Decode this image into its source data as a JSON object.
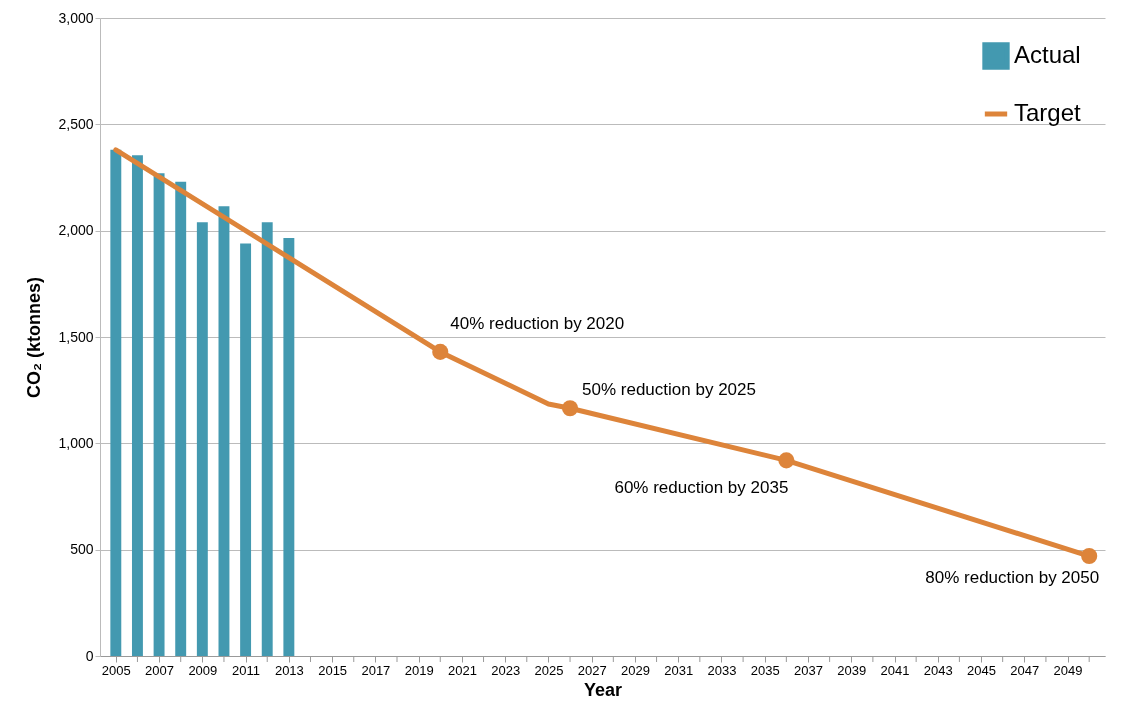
{
  "chart_data": {
    "type": "bar",
    "xlabel": "Year",
    "ylabel": "CO₂ (ktonnes)",
    "xlim": [
      2004.5,
      2050.5
    ],
    "xticks": [
      2005,
      {
        "value": 2006,
        "label": null
      },
      2007,
      {
        "value": 2008,
        "label": null
      },
      2009,
      {
        "value": 2010,
        "label": null
      },
      2011,
      {
        "value": 2012,
        "label": null
      },
      2013,
      {
        "value": 2014,
        "label": null
      },
      2015,
      {
        "value": 2016,
        "label": null
      },
      2017,
      {
        "value": 2018,
        "label": null
      },
      2019,
      {
        "value": 2020,
        "label": null
      },
      2021,
      {
        "value": 2022,
        "label": null
      },
      2023,
      {
        "value": 2024,
        "label": null
      },
      2025,
      {
        "value": 2026,
        "label": null
      },
      2027,
      {
        "value": 2028,
        "label": null
      },
      2029,
      {
        "value": 2030,
        "label": null
      },
      2031,
      {
        "value": 2032,
        "label": null
      },
      2033,
      {
        "value": 2034,
        "label": null
      },
      2035,
      {
        "value": 2036,
        "label": null
      },
      2037,
      {
        "value": 2038,
        "label": null
      },
      2039,
      {
        "value": 2040,
        "label": null
      },
      2041,
      {
        "value": 2042,
        "label": null
      },
      2043,
      {
        "value": 2044,
        "label": null
      },
      2045,
      {
        "value": 2046,
        "label": null
      },
      2047,
      {
        "value": 2048,
        "label": null
      },
      2049,
      {
        "value": 2050,
        "label": null
      }
    ],
    "ylim": [
      0,
      3000
    ],
    "yticks": [
      0,
      500,
      {
        "value": 1000,
        "label": "1,000"
      },
      {
        "value": 1500,
        "label": "1,500"
      },
      {
        "value": 2000,
        "label": "2,000"
      },
      {
        "value": 2500,
        "label": "2,500"
      },
      {
        "value": 3000,
        "label": "3,000"
      }
    ],
    "grid": "y",
    "legend": "top right",
    "series": [
      {
        "name": "Actual",
        "color": "#4399b0",
        "x": [
          2005,
          2006,
          2007,
          2008,
          2009,
          2010,
          2011,
          2012,
          2013
        ],
        "values": [
          2380,
          2355,
          2270,
          2230,
          2040,
          2115,
          1940,
          2040,
          1965
        ]
      },
      {
        "name": "Target",
        "type": "line",
        "color": "#dd843a",
        "marker": "none",
        "x": [
          2005,
          2020,
          2025,
          2026,
          2036,
          2050
        ],
        "values": [
          2380,
          1430,
          1185,
          1165,
          920,
          470
        ]
      },
      {
        "type": "scatter",
        "color": "#dd843a",
        "marker": "circle",
        "x": [
          2020,
          2026,
          2036,
          2050
        ],
        "values": [
          1430,
          1165,
          920,
          470
        ]
      }
    ],
    "annotations": [
      {
        "text": "40% reduction by 2020",
        "x": 2020,
        "y": 1430
      },
      {
        "text": "50% reduction by 2025",
        "x": 2026,
        "y": 1165
      },
      {
        "text": "60% reduction by 2035",
        "x": 2036,
        "y": 920
      },
      {
        "text": "80% reduction by 2050",
        "x": 2050,
        "y": 470
      }
    ]
  }
}
